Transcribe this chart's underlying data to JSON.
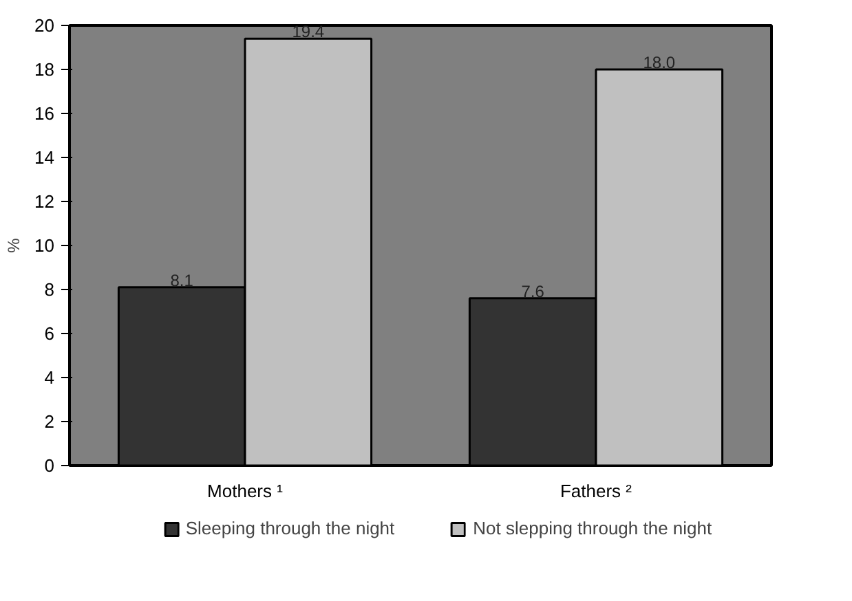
{
  "chart_data": {
    "type": "bar",
    "ylabel": "%",
    "categories": [
      "Mothers ¹",
      "Fathers ²"
    ],
    "series": [
      {
        "name": "Sleeping through the night",
        "color": "#333333",
        "values": [
          8.1,
          7.6
        ],
        "value_labels": [
          "8.1",
          "7.6"
        ]
      },
      {
        "name": "Not slepping through the night",
        "color": "#c0c0c0",
        "values": [
          19.4,
          18.0
        ],
        "value_labels": [
          "19.4",
          "18.0"
        ]
      }
    ],
    "ylim": [
      0,
      20
    ],
    "yticks": [
      0,
      2,
      4,
      6,
      8,
      10,
      12,
      14,
      16,
      18,
      20
    ],
    "grid": false,
    "legend": "bottom"
  }
}
